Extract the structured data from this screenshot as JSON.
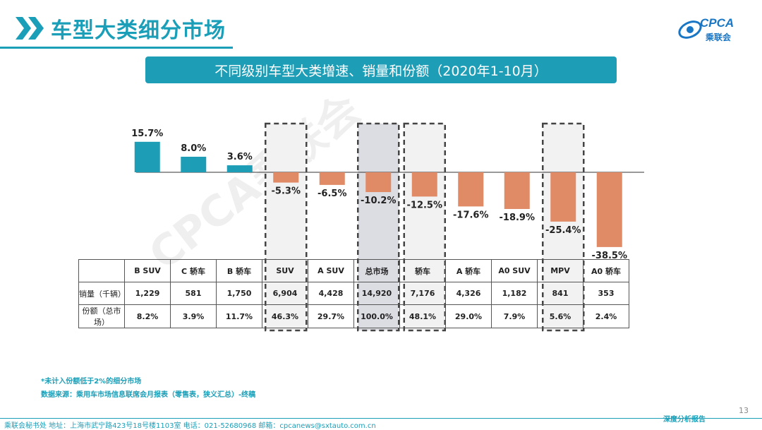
{
  "header": {
    "title": "车型大类细分市场",
    "logo_text": "CPCA",
    "logo_sub": "乘联会"
  },
  "subtitle": "不同级别车型大类增速、销量和份额（2020年1-10月）",
  "colors": {
    "accent": "#1b9fb8",
    "positive": "#1e9db6",
    "negative": "#e08a66",
    "highlight": "#dcdce3"
  },
  "chart_data": {
    "type": "bar",
    "categories": [
      "B SUV",
      "C 轿车",
      "B 轿车",
      "SUV",
      "A SUV",
      "总市场",
      "轿车",
      "A 轿车",
      "A0 SUV",
      "MPV",
      "A0 轿车"
    ],
    "values": [
      15.7,
      8.0,
      3.6,
      -5.3,
      -6.5,
      -10.2,
      -12.5,
      -17.6,
      -18.9,
      -25.4,
      -38.5
    ],
    "value_labels": [
      "15.7%",
      "8.0%",
      "3.6%",
      "-5.3%",
      "-6.5%",
      "-10.2%",
      "-12.5%",
      "-17.6%",
      "-18.9%",
      "-25.4%",
      "-38.5%"
    ],
    "highlighted": [
      "SUV",
      "总市场",
      "轿车",
      "MPV"
    ],
    "shaded": [
      "总市场"
    ],
    "ylim": [
      -40,
      20
    ],
    "title": "",
    "xlabel": "",
    "ylabel": ""
  },
  "table": {
    "rows": [
      {
        "label": "销量（千辆）",
        "values": [
          "1,229",
          "581",
          "1,750",
          "6,904",
          "4,428",
          "14,920",
          "7,176",
          "4,326",
          "1,182",
          "841",
          "353"
        ]
      },
      {
        "label": "份额（总市场）",
        "values": [
          "8.2%",
          "3.9%",
          "11.7%",
          "46.3%",
          "29.7%",
          "100.0%",
          "48.1%",
          "29.0%",
          "7.9%",
          "5.6%",
          "2.4%"
        ]
      }
    ]
  },
  "footnotes": {
    "note1": "*未计入份额低于2%的细分市场",
    "note2": "数据来源：乘用车市场信息联席会月报表（零售表，狭义汇总）-终稿"
  },
  "footer": {
    "page_number": "13",
    "contact": "乘联会秘书处   地址：上海市武宁路423号18号楼1103室   电话：021-52680968   邮箱：cpcanews@sxtauto.com.cn",
    "right_label": "深度分析报告"
  },
  "watermark": "CPCA乘联会"
}
